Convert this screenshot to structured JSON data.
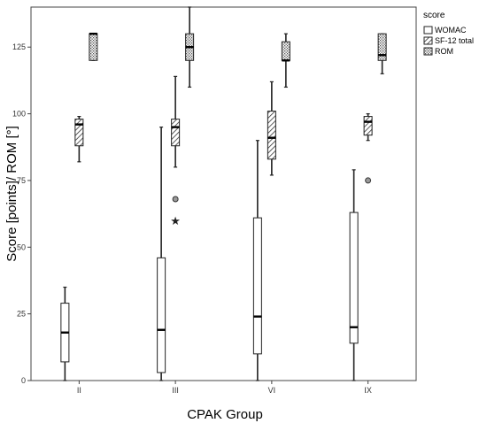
{
  "chart_data": {
    "type": "boxplot",
    "xlabel": "CPAK Group",
    "ylabel": "Score [points]/ ROM [°]",
    "ylim": [
      0,
      140
    ],
    "yticks": [
      0,
      25,
      50,
      75,
      100,
      125
    ],
    "categories": [
      "II",
      "III",
      "VI",
      "IX"
    ],
    "legend": {
      "title": "score",
      "placement": "top-right"
    },
    "series": [
      {
        "name": "WOMAC",
        "pattern": "white",
        "boxes": [
          {
            "whisker_low": 0,
            "q1": 7,
            "median": 18,
            "q3": 29,
            "whisker_high": 35
          },
          {
            "whisker_low": 0,
            "q1": 3,
            "median": 19,
            "q3": 46,
            "whisker_high": 95
          },
          {
            "whisker_low": 0,
            "q1": 10,
            "median": 24,
            "q3": 61,
            "whisker_high": 90
          },
          {
            "whisker_low": 0,
            "q1": 14,
            "median": 20,
            "q3": 63,
            "whisker_high": 79
          }
        ]
      },
      {
        "name": "SF-12 total",
        "pattern": "diagonal-hatch",
        "boxes": [
          {
            "whisker_low": 82,
            "q1": 88,
            "median": 96,
            "q3": 98,
            "whisker_high": 99
          },
          {
            "whisker_low": 80,
            "q1": 88,
            "median": 95,
            "q3": 98,
            "whisker_high": 114,
            "outliers": [
              {
                "value": 68,
                "symbol": "circle"
              },
              {
                "value": 60,
                "symbol": "star"
              }
            ]
          },
          {
            "whisker_low": 77,
            "q1": 83,
            "median": 91,
            "q3": 101,
            "whisker_high": 112
          },
          {
            "whisker_low": 90,
            "q1": 92,
            "median": 97,
            "q3": 99,
            "whisker_high": 100,
            "outliers": [
              {
                "value": 75,
                "symbol": "circle"
              }
            ]
          }
        ]
      },
      {
        "name": "ROM",
        "pattern": "dotted",
        "boxes": [
          {
            "whisker_low": 120,
            "q1": 120,
            "median": 130,
            "q3": 130,
            "whisker_high": 130
          },
          {
            "whisker_low": 110,
            "q1": 120,
            "median": 125,
            "q3": 130,
            "whisker_high": 140
          },
          {
            "whisker_low": 110,
            "q1": 120,
            "median": 120,
            "q3": 127,
            "whisker_high": 130
          },
          {
            "whisker_low": 115,
            "q1": 120,
            "median": 122,
            "q3": 130,
            "whisker_high": 130
          }
        ]
      }
    ]
  }
}
